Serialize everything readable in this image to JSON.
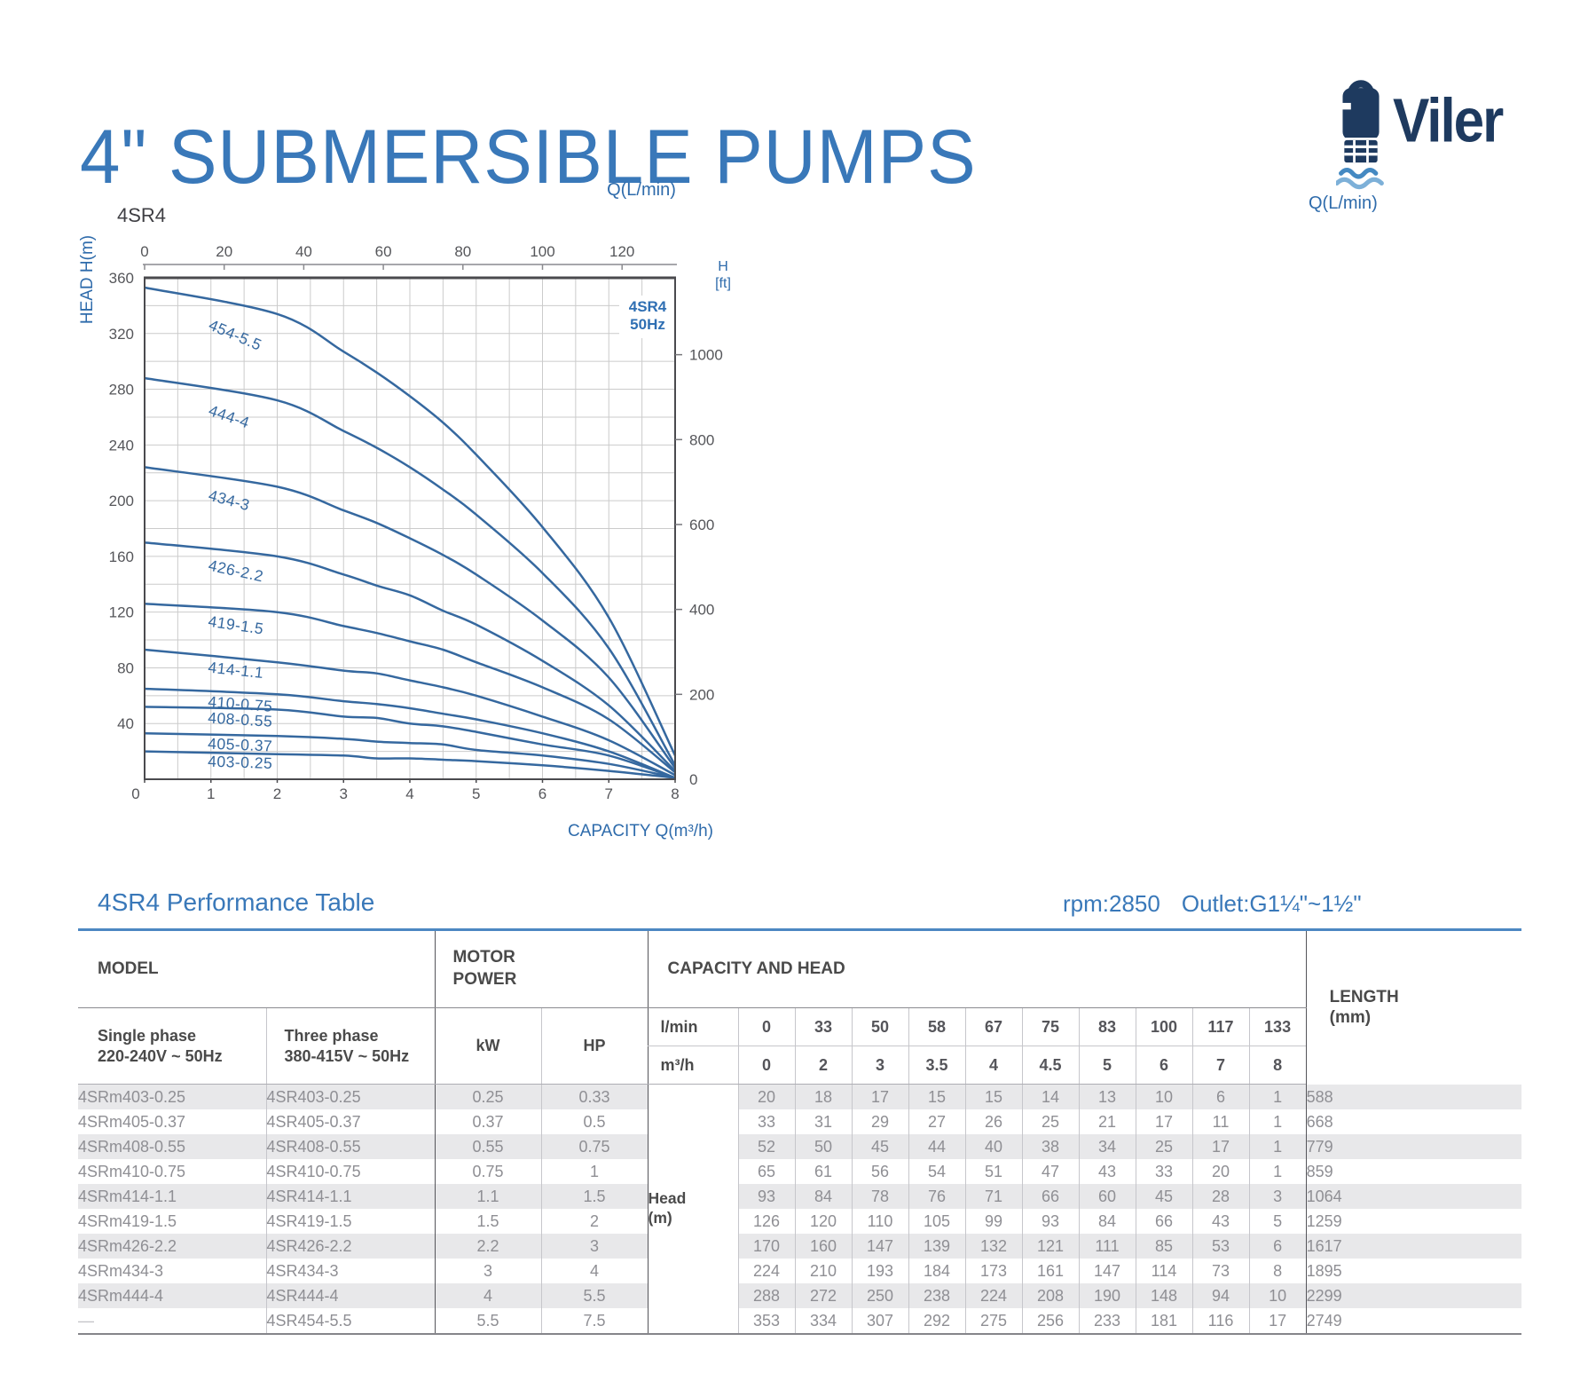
{
  "header": {
    "title": "4\" SUBMERSIBLE PUMPS"
  },
  "logo": {
    "brand": "Viler",
    "icon": "submersible-pump-icon",
    "flow_label": "Q(L/min)",
    "colors": {
      "navy": "#1e3a5f",
      "wave_dark": "#4489c2",
      "wave_light": "#7db0d8"
    }
  },
  "chart_data": {
    "type": "line",
    "corner_label": "4SR4",
    "badge_lines": [
      "4SR4",
      "50Hz"
    ],
    "top_axis": {
      "label": "Q(L/min)",
      "ticks": [
        0,
        20,
        40,
        60,
        80,
        100,
        120
      ],
      "max": 133.333
    },
    "x_axis": {
      "label": "CAPACITY Q(m³/h)",
      "ticks": [
        0,
        1,
        2,
        3,
        4,
        5,
        6,
        7,
        8
      ],
      "range": [
        0,
        8
      ]
    },
    "y_axis": {
      "label": "HEAD H(m)",
      "ticks": [
        360,
        320,
        280,
        240,
        200,
        160,
        120,
        80,
        40
      ],
      "range": [
        0,
        360
      ]
    },
    "y2_axis": {
      "label_lines": [
        "H",
        "[ft]"
      ],
      "ticks": [
        1000,
        800,
        600,
        400,
        200,
        0
      ],
      "unit_m_per_ft": 0.3048
    },
    "grid": {
      "x_step": 0.5,
      "y_step": 20,
      "on": true
    },
    "curve_color": "#35689f",
    "label_color": "#35689f",
    "x": [
      0,
      2,
      3,
      3.5,
      4,
      4.5,
      5,
      6,
      7,
      8
    ],
    "series": [
      {
        "name": "403-0.25",
        "values": [
          20,
          18,
          17,
          15,
          15,
          14,
          13,
          10,
          6,
          1
        ]
      },
      {
        "name": "405-0.37",
        "values": [
          33,
          31,
          29,
          27,
          26,
          25,
          21,
          17,
          11,
          1
        ]
      },
      {
        "name": "408-0.55",
        "values": [
          52,
          50,
          45,
          44,
          40,
          38,
          34,
          25,
          17,
          1
        ]
      },
      {
        "name": "410-0.75",
        "values": [
          65,
          61,
          56,
          54,
          51,
          47,
          43,
          33,
          20,
          1
        ]
      },
      {
        "name": "414-1.1",
        "values": [
          93,
          84,
          78,
          76,
          71,
          66,
          60,
          45,
          28,
          3
        ]
      },
      {
        "name": "419-1.5",
        "values": [
          126,
          120,
          110,
          105,
          99,
          93,
          84,
          66,
          43,
          5
        ]
      },
      {
        "name": "426-2.2",
        "values": [
          170,
          160,
          147,
          139,
          132,
          121,
          111,
          85,
          53,
          6
        ]
      },
      {
        "name": "434-3",
        "values": [
          224,
          210,
          193,
          184,
          173,
          161,
          147,
          114,
          73,
          8
        ]
      },
      {
        "name": "444-4",
        "values": [
          288,
          272,
          250,
          238,
          224,
          208,
          190,
          148,
          94,
          10
        ]
      },
      {
        "name": "454-5.5",
        "values": [
          353,
          334,
          307,
          292,
          275,
          256,
          233,
          181,
          116,
          17
        ]
      }
    ]
  },
  "table": {
    "heading": "4SR4 Performance Table",
    "spec": {
      "rpm": "rpm:2850",
      "outlet": "Outlet:G1¼\"~1½\""
    },
    "headers": {
      "model": "MODEL",
      "motor_power": "MOTOR POWER",
      "capacity_head": "CAPACITY AND HEAD",
      "length": "LENGTH",
      "length_unit": "(mm)",
      "single_phase": "Single phase",
      "single_phase_sub": "220-240V ~ 50Hz",
      "three_phase": "Three phase",
      "three_phase_sub": "380-415V ~ 50Hz",
      "kw": "kW",
      "hp": "HP",
      "lmin": "l/min",
      "m3h": "m³/h",
      "head_label": "Head",
      "head_unit": "(m)"
    },
    "lmin_values": [
      "0",
      "33",
      "50",
      "58",
      "67",
      "75",
      "83",
      "100",
      "117",
      "133"
    ],
    "m3h_values": [
      "0",
      "2",
      "3",
      "3.5",
      "4",
      "4.5",
      "5",
      "6",
      "7",
      "8"
    ],
    "rows": [
      {
        "single": "4SRm403-0.25",
        "three": "4SR403-0.25",
        "kw": "0.25",
        "hp": "0.33",
        "heads": [
          20,
          18,
          17,
          15,
          15,
          14,
          13,
          10,
          6,
          1
        ],
        "length": "588"
      },
      {
        "single": "4SRm405-0.37",
        "three": "4SR405-0.37",
        "kw": "0.37",
        "hp": "0.5",
        "heads": [
          33,
          31,
          29,
          27,
          26,
          25,
          21,
          17,
          11,
          1
        ],
        "length": "668"
      },
      {
        "single": "4SRm408-0.55",
        "three": "4SR408-0.55",
        "kw": "0.55",
        "hp": "0.75",
        "heads": [
          52,
          50,
          45,
          44,
          40,
          38,
          34,
          25,
          17,
          1
        ],
        "length": "779"
      },
      {
        "single": "4SRm410-0.75",
        "three": "4SR410-0.75",
        "kw": "0.75",
        "hp": "1",
        "heads": [
          65,
          61,
          56,
          54,
          51,
          47,
          43,
          33,
          20,
          1
        ],
        "length": "859"
      },
      {
        "single": "4SRm414-1.1",
        "three": "4SR414-1.1",
        "kw": "1.1",
        "hp": "1.5",
        "heads": [
          93,
          84,
          78,
          76,
          71,
          66,
          60,
          45,
          28,
          3
        ],
        "length": "1064"
      },
      {
        "single": "4SRm419-1.5",
        "three": "4SR419-1.5",
        "kw": "1.5",
        "hp": "2",
        "heads": [
          126,
          120,
          110,
          105,
          99,
          93,
          84,
          66,
          43,
          5
        ],
        "length": "1259"
      },
      {
        "single": "4SRm426-2.2",
        "three": "4SR426-2.2",
        "kw": "2.2",
        "hp": "3",
        "heads": [
          170,
          160,
          147,
          139,
          132,
          121,
          111,
          85,
          53,
          6
        ],
        "length": "1617"
      },
      {
        "single": "4SRm434-3",
        "three": "4SR434-3",
        "kw": "3",
        "hp": "4",
        "heads": [
          224,
          210,
          193,
          184,
          173,
          161,
          147,
          114,
          73,
          8
        ],
        "length": "1895"
      },
      {
        "single": "4SRm444-4",
        "three": "4SR444-4",
        "kw": "4",
        "hp": "5.5",
        "heads": [
          288,
          272,
          250,
          238,
          224,
          208,
          190,
          148,
          94,
          10
        ],
        "length": "2299"
      },
      {
        "single": "—",
        "three": "4SR454-5.5",
        "kw": "5.5",
        "hp": "7.5",
        "heads": [
          353,
          334,
          307,
          292,
          275,
          256,
          233,
          181,
          116,
          17
        ],
        "length": "2749"
      }
    ]
  }
}
